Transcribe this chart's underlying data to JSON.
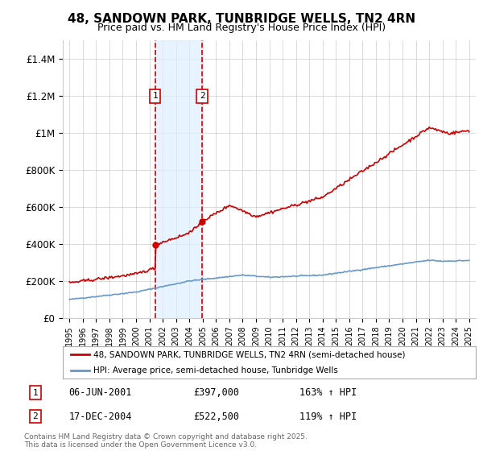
{
  "title": "48, SANDOWN PARK, TUNBRIDGE WELLS, TN2 4RN",
  "subtitle": "Price paid vs. HM Land Registry's House Price Index (HPI)",
  "legend_label_red": "48, SANDOWN PARK, TUNBRIDGE WELLS, TN2 4RN (semi-detached house)",
  "legend_label_blue": "HPI: Average price, semi-detached house, Tunbridge Wells",
  "transaction1_date": "06-JUN-2001",
  "transaction1_price": "£397,000",
  "transaction1_hpi": "163% ↑ HPI",
  "transaction2_date": "17-DEC-2004",
  "transaction2_price": "£522,500",
  "transaction2_hpi": "119% ↑ HPI",
  "footnote": "Contains HM Land Registry data © Crown copyright and database right 2025.\nThis data is licensed under the Open Government Licence v3.0.",
  "red_color": "#cc0000",
  "blue_color": "#6699cc",
  "shading_color": "#ddeeff",
  "dashed_color": "#cc0000",
  "grid_color": "#cccccc",
  "background_color": "#ffffff",
  "transaction1_x": 2001.43,
  "transaction2_x": 2004.96,
  "ylim_min": 0,
  "ylim_max": 1500000,
  "xlim_min": 1994.5,
  "xlim_max": 2025.5
}
